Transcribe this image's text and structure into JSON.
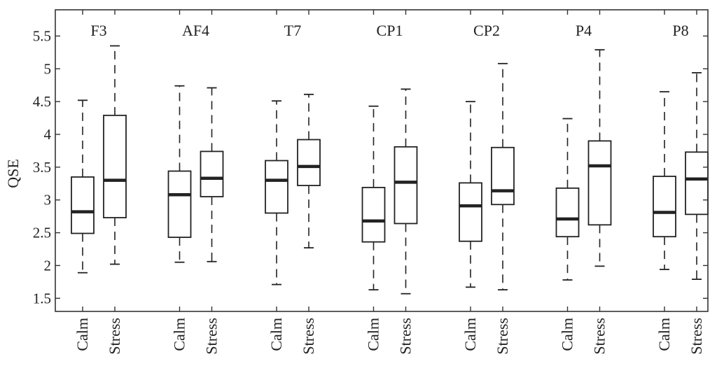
{
  "chart_data": {
    "type": "box",
    "ylabel": "QSE",
    "xlabel": "",
    "ylim": [
      1.3,
      5.9
    ],
    "yticks": [
      1.5,
      2,
      2.5,
      3,
      3.5,
      4,
      4.5,
      5,
      5.5
    ],
    "grid": false,
    "channels": [
      "F3",
      "AF4",
      "T7",
      "CP1",
      "CP2",
      "P4",
      "P8"
    ],
    "conditions": [
      "Calm",
      "Stress"
    ],
    "boxes": [
      {
        "channel": "F3",
        "condition": "Calm",
        "whisker_low": 1.89,
        "q1": 2.49,
        "median": 2.82,
        "q3": 3.35,
        "whisker_high": 4.52
      },
      {
        "channel": "F3",
        "condition": "Stress",
        "whisker_low": 2.02,
        "q1": 2.73,
        "median": 3.3,
        "q3": 4.29,
        "whisker_high": 5.35
      },
      {
        "channel": "AF4",
        "condition": "Calm",
        "whisker_low": 2.05,
        "q1": 2.43,
        "median": 3.08,
        "q3": 3.44,
        "whisker_high": 4.74
      },
      {
        "channel": "AF4",
        "condition": "Stress",
        "whisker_low": 2.06,
        "q1": 3.05,
        "median": 3.33,
        "q3": 3.74,
        "whisker_high": 4.71
      },
      {
        "channel": "T7",
        "condition": "Calm",
        "whisker_low": 1.71,
        "q1": 2.8,
        "median": 3.3,
        "q3": 3.6,
        "whisker_high": 4.51
      },
      {
        "channel": "T7",
        "condition": "Stress",
        "whisker_low": 2.27,
        "q1": 3.22,
        "median": 3.51,
        "q3": 3.92,
        "whisker_high": 4.61
      },
      {
        "channel": "CP1",
        "condition": "Calm",
        "whisker_low": 1.63,
        "q1": 2.36,
        "median": 2.68,
        "q3": 3.19,
        "whisker_high": 4.43
      },
      {
        "channel": "CP1",
        "condition": "Stress",
        "whisker_low": 1.57,
        "q1": 2.64,
        "median": 3.27,
        "q3": 3.81,
        "whisker_high": 4.69
      },
      {
        "channel": "CP2",
        "condition": "Calm",
        "whisker_low": 1.67,
        "q1": 2.37,
        "median": 2.91,
        "q3": 3.26,
        "whisker_high": 4.5
      },
      {
        "channel": "CP2",
        "condition": "Stress",
        "whisker_low": 1.63,
        "q1": 2.93,
        "median": 3.14,
        "q3": 3.8,
        "whisker_high": 5.08
      },
      {
        "channel": "P4",
        "condition": "Calm",
        "whisker_low": 1.78,
        "q1": 2.44,
        "median": 2.71,
        "q3": 3.18,
        "whisker_high": 4.24
      },
      {
        "channel": "P4",
        "condition": "Stress",
        "whisker_low": 1.99,
        "q1": 2.62,
        "median": 3.52,
        "q3": 3.9,
        "whisker_high": 5.29
      },
      {
        "channel": "P8",
        "condition": "Calm",
        "whisker_low": 1.94,
        "q1": 2.44,
        "median": 2.81,
        "q3": 3.36,
        "whisker_high": 4.65
      },
      {
        "channel": "P8",
        "condition": "Stress",
        "whisker_low": 1.79,
        "q1": 2.78,
        "median": 3.32,
        "q3": 3.73,
        "whisker_high": 4.94
      }
    ]
  }
}
